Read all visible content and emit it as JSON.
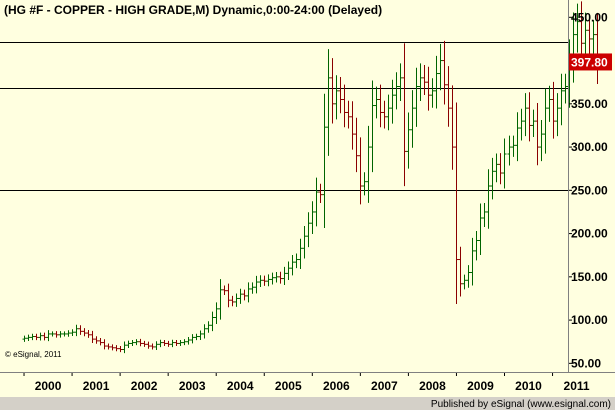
{
  "chart_data": {
    "type": "ohlc",
    "title": "(HG #F - COPPER - HIGH GRADE,M) Dynamic,0:00-24:00 (Delayed)",
    "interval": "monthly",
    "ylim": [
      40,
      470
    ],
    "y_ticks": [
      "450.00",
      "400.00",
      "350.00",
      "300.00",
      "250.00",
      "200.00",
      "150.00",
      "100.00",
      "50.00"
    ],
    "y_tick_values": [
      450,
      400,
      350,
      300,
      250,
      200,
      150,
      100,
      50
    ],
    "x_ticks": [
      "2000",
      "2001",
      "2002",
      "2003",
      "2004",
      "2005",
      "2006",
      "2007",
      "2008",
      "2009",
      "2010",
      "2011"
    ],
    "xlim": [
      1999.5,
      2011.28
    ],
    "horizontal_lines": [
      422,
      368,
      250
    ],
    "last_price": 397.8,
    "last_price_label": "397.80",
    "colors": {
      "up": "#006400",
      "down": "#8b0000",
      "background": "#ffffe0",
      "price_label": "#cc0000"
    },
    "grid": false,
    "monthly_closes": [
      79,
      80,
      81,
      80,
      82,
      80,
      84,
      84,
      83,
      84,
      84,
      85,
      86,
      90,
      87,
      85,
      83,
      78,
      76,
      74,
      70,
      69,
      68,
      67,
      66,
      71,
      73,
      74,
      75,
      73,
      72,
      70,
      69,
      72,
      74,
      73,
      72,
      74,
      73,
      74,
      75,
      77,
      80,
      81,
      84,
      90,
      94,
      103,
      113,
      135,
      134,
      123,
      121,
      125,
      130,
      128,
      136,
      138,
      144,
      146,
      145,
      147,
      149,
      150,
      148,
      154,
      160,
      167,
      170,
      183,
      197,
      212,
      225,
      248,
      245,
      323,
      380,
      350,
      365,
      355,
      340,
      335,
      315,
      290,
      255,
      260,
      300,
      348,
      355,
      340,
      335,
      345,
      360,
      370,
      380,
      295,
      320,
      345,
      370,
      380,
      375,
      360,
      365,
      385,
      400,
      372,
      345,
      300,
      170,
      142,
      146,
      155,
      180,
      192,
      218,
      225,
      255,
      272,
      280,
      270,
      292,
      300,
      302,
      322,
      330,
      345,
      325,
      330,
      300,
      315,
      345,
      355,
      330,
      345,
      365,
      370,
      400,
      430,
      445,
      420,
      435,
      425,
      430,
      398
    ]
  },
  "footer": {
    "publisher": "Published by eSignal (www.esignal.com)"
  },
  "copyright": "© eSignal, 2011"
}
